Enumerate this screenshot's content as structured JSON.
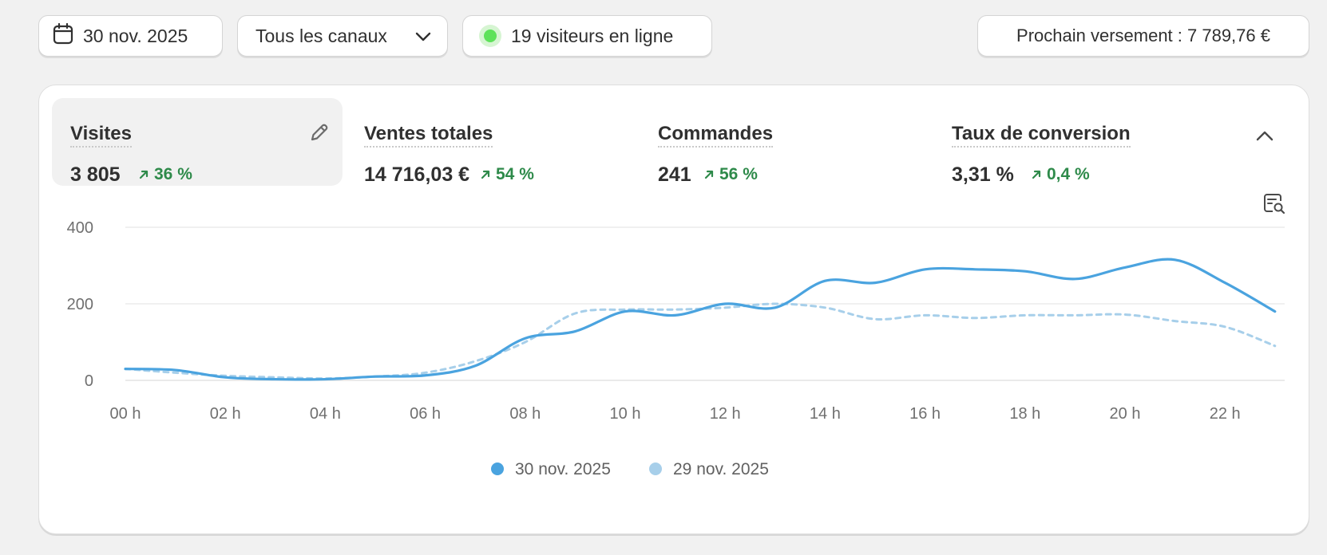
{
  "toolbar": {
    "date_label": "30 nov. 2025",
    "channel_label": "Tous les canaux",
    "visitors_label": "19 visiteurs en ligne",
    "payout_label": "Prochain versement : 7 789,76 €"
  },
  "metrics": [
    {
      "label": "Visites",
      "value": "3 805",
      "change": "36 %"
    },
    {
      "label": "Ventes totales",
      "value": "14 716,03 €",
      "change": "54 %"
    },
    {
      "label": "Commandes",
      "value": "241",
      "change": "56 %"
    },
    {
      "label": "Taux de conversion",
      "value": "3,31 %",
      "change": "0,4 %"
    }
  ],
  "colors": {
    "accent": "#4aa3df",
    "comparison": "#a7cfea",
    "positive": "#2e8a4a",
    "online_dot": "#5ee25a"
  },
  "icons": {
    "date": "calendar-icon",
    "channel": "chevron-down-icon",
    "edit": "pencil-icon",
    "collapse": "chevron-up-icon",
    "insight": "report-search-icon",
    "trend": "arrow-up-right-icon"
  },
  "chart_data": {
    "type": "line",
    "x": [
      "00 h",
      "01 h",
      "02 h",
      "03 h",
      "04 h",
      "05 h",
      "06 h",
      "07 h",
      "08 h",
      "09 h",
      "10 h",
      "11 h",
      "12 h",
      "13 h",
      "14 h",
      "15 h",
      "16 h",
      "17 h",
      "18 h",
      "19 h",
      "20 h",
      "21 h",
      "22 h",
      "23 h"
    ],
    "xticks": [
      "00 h",
      "02 h",
      "04 h",
      "06 h",
      "08 h",
      "10 h",
      "12 h",
      "14 h",
      "16 h",
      "18 h",
      "20 h",
      "22 h"
    ],
    "yticks": [
      0,
      200,
      400
    ],
    "ylim": [
      0,
      400
    ],
    "grid": true,
    "legend_position": "bottom",
    "series": [
      {
        "name": "30 nov. 2025",
        "style": "solid",
        "color": "#4aa3df",
        "values": [
          30,
          27,
          8,
          3,
          3,
          10,
          13,
          38,
          110,
          128,
          180,
          170,
          200,
          190,
          260,
          255,
          290,
          290,
          285,
          265,
          295,
          315,
          255,
          180
        ]
      },
      {
        "name": "29 nov. 2025",
        "style": "dashed",
        "color": "#a7cfea",
        "values": [
          30,
          20,
          12,
          8,
          5,
          10,
          20,
          50,
          100,
          175,
          185,
          185,
          190,
          200,
          190,
          160,
          170,
          163,
          170,
          170,
          172,
          155,
          140,
          90
        ]
      }
    ]
  }
}
